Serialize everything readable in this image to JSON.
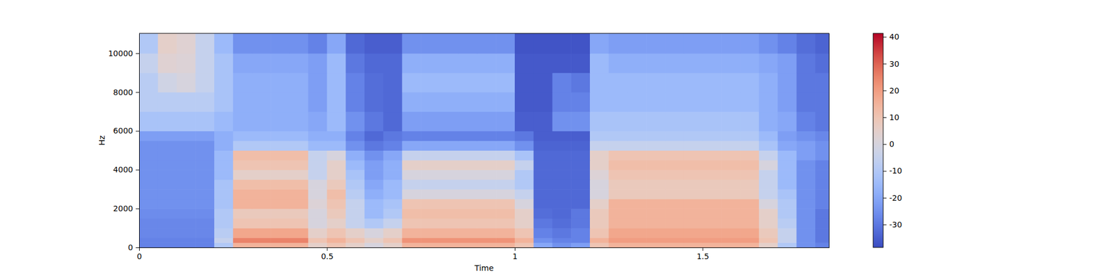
{
  "chart_data": {
    "type": "heatmap",
    "x_label": "Time",
    "y_label": "Hz",
    "xlim": [
      0,
      1.837
    ],
    "ylim": [
      0,
      11025
    ],
    "xticks": [
      0,
      0.5,
      1,
      1.5
    ],
    "yticks": [
      0,
      2000,
      4000,
      6000,
      8000,
      10000
    ],
    "x_edges": [
      0,
      0.05,
      0.1,
      0.15,
      0.2,
      0.25,
      0.3,
      0.35,
      0.4,
      0.45,
      0.5,
      0.55,
      0.6,
      0.65,
      0.7,
      0.75,
      0.8,
      0.85,
      0.9,
      0.95,
      1.0,
      1.05,
      1.1,
      1.15,
      1.2,
      1.25,
      1.3,
      1.35,
      1.4,
      1.45,
      1.5,
      1.55,
      1.6,
      1.65,
      1.7,
      1.75,
      1.8,
      1.837
    ],
    "y_edges": [
      0,
      250,
      500,
      1000,
      1500,
      2000,
      2500,
      3000,
      3500,
      4000,
      4500,
      5000,
      5500,
      6000,
      7000,
      8000,
      9000,
      10000,
      11025
    ],
    "z": [
      [
        -28,
        -28,
        -28,
        -28,
        -10,
        15,
        15,
        15,
        15,
        5,
        10,
        5,
        0,
        5,
        15,
        15,
        15,
        15,
        15,
        15,
        10,
        -20,
        -25,
        -22,
        10,
        15,
        15,
        15,
        15,
        15,
        15,
        15,
        15,
        5,
        -10,
        -25,
        -28
      ],
      [
        -28,
        -28,
        -28,
        -28,
        -5,
        25,
        25,
        25,
        25,
        10,
        15,
        10,
        5,
        10,
        22,
        22,
        22,
        22,
        22,
        22,
        15,
        -25,
        -28,
        -28,
        15,
        20,
        20,
        20,
        20,
        20,
        20,
        20,
        20,
        10,
        -5,
        -25,
        -30
      ],
      [
        -27,
        -27,
        -27,
        -27,
        -8,
        18,
        18,
        18,
        18,
        5,
        10,
        5,
        0,
        5,
        15,
        15,
        15,
        15,
        15,
        15,
        10,
        -28,
        -30,
        -28,
        10,
        18,
        18,
        18,
        18,
        18,
        18,
        18,
        18,
        8,
        -5,
        -25,
        -30
      ],
      [
        -27,
        -27,
        -27,
        -27,
        -10,
        10,
        10,
        10,
        10,
        0,
        5,
        -5,
        -10,
        -5,
        10,
        10,
        10,
        10,
        10,
        10,
        5,
        -30,
        -32,
        -30,
        8,
        15,
        15,
        15,
        15,
        15,
        15,
        15,
        15,
        5,
        -8,
        -25,
        -30
      ],
      [
        -26,
        -26,
        -26,
        -26,
        -10,
        8,
        8,
        8,
        8,
        0,
        8,
        -5,
        -15,
        -10,
        12,
        12,
        12,
        12,
        12,
        12,
        5,
        -32,
        -33,
        -30,
        8,
        15,
        15,
        15,
        15,
        15,
        15,
        15,
        15,
        5,
        -10,
        -25,
        -30
      ],
      [
        -25,
        -25,
        -25,
        -25,
        -12,
        15,
        15,
        15,
        15,
        2,
        10,
        -5,
        -15,
        -12,
        10,
        10,
        10,
        10,
        10,
        10,
        0,
        -33,
        -33,
        -33,
        5,
        15,
        15,
        15,
        15,
        15,
        15,
        15,
        15,
        0,
        -10,
        -25,
        -28
      ],
      [
        -25,
        -25,
        -25,
        -25,
        -12,
        15,
        15,
        15,
        15,
        0,
        12,
        -8,
        -18,
        -15,
        0,
        0,
        0,
        0,
        0,
        0,
        -5,
        -33,
        -33,
        -33,
        0,
        8,
        8,
        8,
        8,
        8,
        8,
        8,
        8,
        -5,
        -12,
        -25,
        -28
      ],
      [
        -25,
        -25,
        -25,
        -25,
        -12,
        12,
        12,
        12,
        12,
        0,
        8,
        -10,
        -20,
        -15,
        -5,
        -5,
        -5,
        -5,
        -5,
        -5,
        -10,
        -33,
        -33,
        -33,
        0,
        8,
        8,
        8,
        8,
        8,
        8,
        8,
        8,
        -5,
        -15,
        -25,
        -28
      ],
      [
        -25,
        -25,
        -25,
        -25,
        -15,
        5,
        5,
        5,
        5,
        -5,
        5,
        -12,
        -22,
        -18,
        0,
        0,
        0,
        0,
        0,
        0,
        -10,
        -33,
        -33,
        -33,
        2,
        10,
        10,
        10,
        10,
        10,
        10,
        10,
        10,
        -5,
        -15,
        -25,
        -28
      ],
      [
        -25,
        -25,
        -25,
        -25,
        -15,
        10,
        10,
        10,
        10,
        -5,
        5,
        -15,
        -22,
        -18,
        5,
        5,
        5,
        5,
        5,
        5,
        -5,
        -33,
        -33,
        -33,
        5,
        12,
        12,
        12,
        12,
        12,
        12,
        12,
        12,
        0,
        -15,
        -25,
        -28
      ],
      [
        -25,
        -25,
        -25,
        -25,
        -15,
        12,
        12,
        12,
        12,
        -5,
        0,
        -18,
        -25,
        -20,
        -5,
        -5,
        -5,
        -5,
        -5,
        -5,
        -12,
        -33,
        -33,
        -33,
        5,
        10,
        10,
        10,
        10,
        10,
        10,
        10,
        10,
        -5,
        -15,
        -22,
        -25
      ],
      [
        -25,
        -25,
        -25,
        -25,
        -18,
        -10,
        -10,
        -10,
        -10,
        -15,
        -15,
        -25,
        -30,
        -28,
        -20,
        -20,
        -20,
        -20,
        -20,
        -20,
        -25,
        -34,
        -34,
        -34,
        -5,
        -5,
        -5,
        -5,
        -5,
        -5,
        -5,
        -5,
        -5,
        -12,
        -20,
        -22,
        -25
      ],
      [
        -22,
        -22,
        -22,
        -22,
        -18,
        -15,
        -15,
        -15,
        -15,
        -18,
        -18,
        -28,
        -33,
        -30,
        -28,
        -28,
        -28,
        -28,
        -28,
        -28,
        -30,
        -35,
        -35,
        -35,
        -10,
        -10,
        -10,
        -10,
        -10,
        -10,
        -10,
        -10,
        -10,
        -15,
        -22,
        -25,
        -27
      ],
      [
        -12,
        -12,
        -12,
        -12,
        -15,
        -18,
        -18,
        -18,
        -18,
        -20,
        -15,
        -25,
        -30,
        -33,
        -22,
        -22,
        -22,
        -22,
        -22,
        -22,
        -35,
        -35,
        -25,
        -25,
        -12,
        -12,
        -12,
        -12,
        -12,
        -12,
        -12,
        -12,
        -12,
        -18,
        -20,
        -28,
        -30
      ],
      [
        -8,
        -8,
        -8,
        -8,
        -12,
        -18,
        -18,
        -18,
        -18,
        -22,
        -15,
        -28,
        -32,
        -33,
        -18,
        -18,
        -18,
        -18,
        -18,
        -18,
        -36,
        -36,
        -28,
        -28,
        -15,
        -15,
        -15,
        -15,
        -15,
        -15,
        -15,
        -15,
        -15,
        -18,
        -22,
        -30,
        -30
      ],
      [
        -8,
        -2,
        0,
        -5,
        -12,
        -18,
        -18,
        -18,
        -18,
        -22,
        -15,
        -28,
        -32,
        -33,
        -15,
        -15,
        -15,
        -15,
        -15,
        -15,
        -36,
        -36,
        -28,
        -30,
        -15,
        -15,
        -15,
        -15,
        -15,
        -15,
        -15,
        -15,
        -15,
        -18,
        -22,
        -30,
        -30
      ],
      [
        -5,
        3,
        2,
        -5,
        -12,
        -20,
        -20,
        -20,
        -20,
        -22,
        -15,
        -30,
        -33,
        -33,
        -18,
        -18,
        -18,
        -18,
        -18,
        -18,
        -36,
        -36,
        -36,
        -36,
        -15,
        -18,
        -18,
        -18,
        -18,
        -18,
        -18,
        -18,
        -18,
        -20,
        -22,
        -30,
        -32
      ],
      [
        -10,
        5,
        3,
        -5,
        -15,
        -25,
        -25,
        -25,
        -25,
        -28,
        -20,
        -33,
        -35,
        -35,
        -25,
        -25,
        -25,
        -25,
        -25,
        -25,
        -37,
        -37,
        -37,
        -37,
        -20,
        -22,
        -22,
        -22,
        -22,
        -22,
        -22,
        -22,
        -22,
        -25,
        -28,
        -32,
        -34
      ]
    ],
    "colorbar_range": [
      -38.5,
      41.3
    ],
    "colorbar_ticks": [
      -30,
      -20,
      -10,
      0,
      10,
      20,
      30,
      40
    ]
  }
}
